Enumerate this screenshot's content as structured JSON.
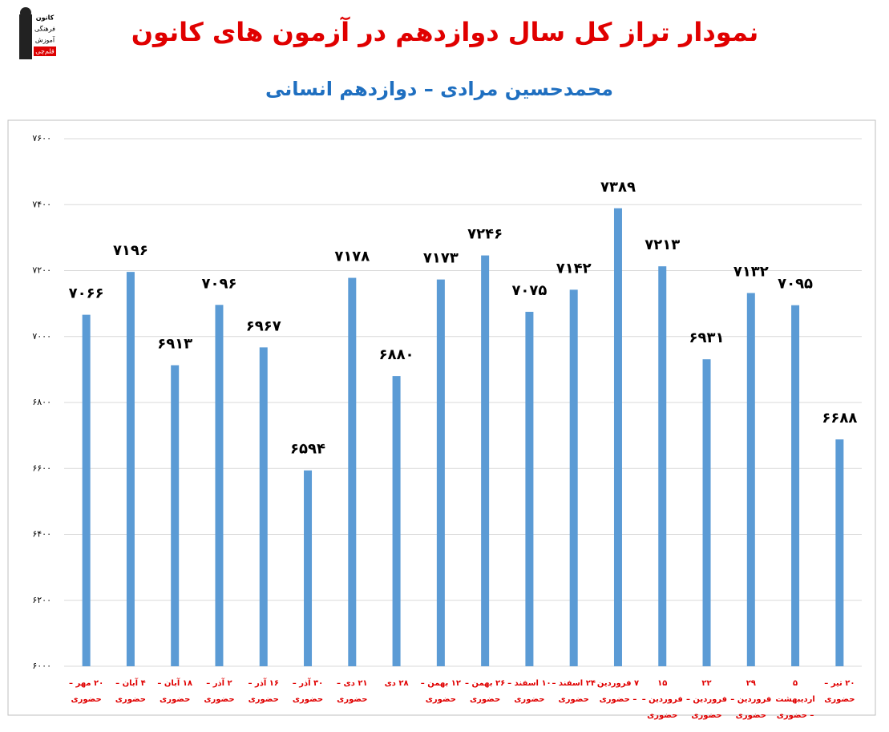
{
  "logo": [
    "کانون",
    "فرهنگی",
    "آموزش",
    "قلم‌چی"
  ],
  "chart_data": {
    "type": "bar",
    "title": "نمودار تراز کل سال دوازدهم در آزمون های کانون",
    "subtitle": "محمدحسین مرادی – دوازدهم انسانی",
    "categories": [
      "۲۰ مهر – حضوری",
      "۴ آبان – حضوری",
      "۱۸ آبان – حضوری",
      "۲ آذر – حضوری",
      "۱۶ آذر – حضوری",
      "۳۰ آذر – حضوری",
      "۲۱ دی – حضوری",
      "۲۸ دی",
      "۱۲ بهمن – حضوری",
      "۲۶ بهمن – حضوری",
      "۱۰ اسفند – حضوری",
      "۲۴ اسفند – حضوری",
      "۷ فروردین – حضوری",
      "۱۵ فروردین – حضوری",
      "۲۲ فروردین – حضوری",
      "۲۹ فروردین – حضوری",
      "۵ اردیبهشت – حضوری",
      "۲۰ تیر – حضوری"
    ],
    "values": [
      7066,
      7196,
      6913,
      7096,
      6967,
      6594,
      7178,
      6880,
      7173,
      7246,
      7075,
      7142,
      7389,
      7213,
      6931,
      7132,
      7095,
      6688
    ],
    "value_labels": [
      "۷۰۶۶",
      "۷۱۹۶",
      "۶۹۱۳",
      "۷۰۹۶",
      "۶۹۶۷",
      "۶۵۹۴",
      "۷۱۷۸",
      "۶۸۸۰",
      "۷۱۷۳",
      "۷۲۴۶",
      "۷۰۷۵",
      "۷۱۴۲",
      "۷۳۸۹",
      "۷۲۱۳",
      "۶۹۳۱",
      "۷۱۳۲",
      "۷۰۹۵",
      "۶۶۸۸"
    ],
    "color": "#5b9bd5",
    "ylim": [
      6000,
      7600
    ],
    "yticks": [
      {
        "value": 6000,
        "label": "۶۰۰۰"
      },
      {
        "value": 6200,
        "label": "۶۲۰۰"
      },
      {
        "value": 6400,
        "label": "۶۴۰۰"
      },
      {
        "value": 6600,
        "label": "۶۶۰۰"
      },
      {
        "value": 6800,
        "label": "۶۸۰۰"
      },
      {
        "value": 7000,
        "label": "۷۰۰۰"
      },
      {
        "value": 7200,
        "label": "۷۲۰۰"
      },
      {
        "value": 7400,
        "label": "۷۴۰۰"
      },
      {
        "value": 7600,
        "label": "۷۶۰۰"
      }
    ],
    "grid": true
  }
}
